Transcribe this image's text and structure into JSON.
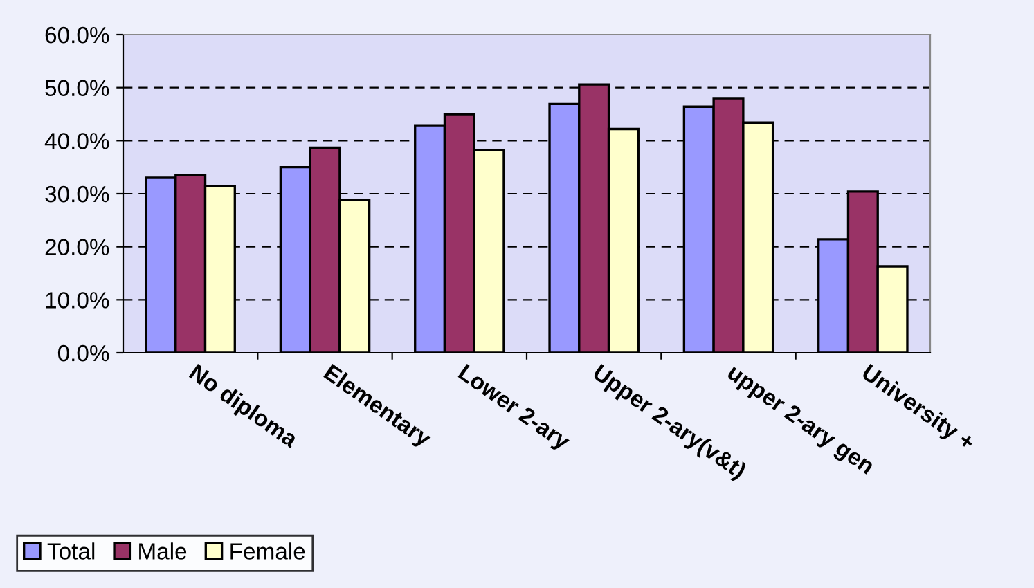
{
  "chart_data": {
    "type": "bar",
    "categories": [
      "No diploma",
      "Elementary",
      "Lower 2-ary",
      "Upper 2-ary(v&t)",
      "upper 2-ary gen",
      "University +"
    ],
    "series": [
      {
        "name": "Total",
        "color": "#9999ff",
        "values": [
          33.0,
          35.0,
          42.9,
          46.9,
          46.4,
          21.4
        ]
      },
      {
        "name": "Male",
        "color": "#993366",
        "values": [
          33.5,
          38.7,
          45.0,
          50.6,
          48.0,
          30.4
        ]
      },
      {
        "name": "Female",
        "color": "#ffffcc",
        "values": [
          31.4,
          28.8,
          38.2,
          42.2,
          43.4,
          16.3
        ]
      }
    ],
    "ylim": [
      0,
      60
    ],
    "yticks": [
      {
        "value": 0,
        "label": "0.0%"
      },
      {
        "value": 10,
        "label": "10.0%"
      },
      {
        "value": 20,
        "label": "20.0%"
      },
      {
        "value": 30,
        "label": "30.0%"
      },
      {
        "value": 40,
        "label": "40.0%"
      },
      {
        "value": 50,
        "label": "50.0%"
      },
      {
        "value": 60,
        "label": "60.0%"
      }
    ],
    "grid": "y",
    "line_style": "dashed",
    "legend": "bottom left"
  }
}
